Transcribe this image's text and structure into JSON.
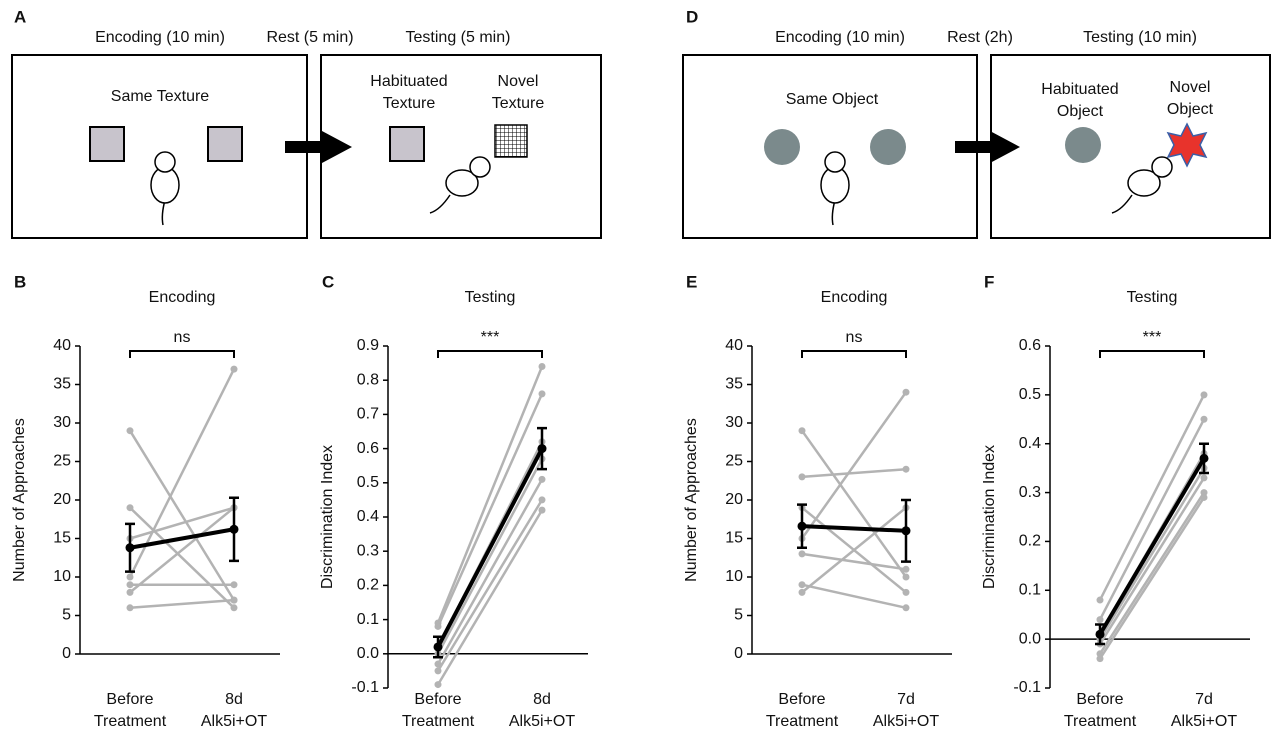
{
  "diagrams": [
    {
      "panel_label": "A",
      "phases": [
        "Encoding (10 min)",
        "Rest (5 min)",
        "Testing (5 min)"
      ],
      "encoding_label": "Same Texture",
      "habituated": [
        "Habituated",
        "Texture"
      ],
      "novel": [
        "Novel",
        "Texture"
      ]
    },
    {
      "panel_label": "D",
      "phases": [
        "Encoding (10 min)",
        "Rest (2h)",
        "Testing (10 min)"
      ],
      "encoding_label": "Same Object",
      "habituated": [
        "Habituated",
        "Object"
      ],
      "novel": [
        "Novel",
        "Object"
      ]
    }
  ],
  "chart_data": [
    {
      "type": "line",
      "panel_label": "B",
      "title": "Encoding",
      "ylabel": "Number of Approaches",
      "categories": [
        [
          "Before",
          "Treatment"
        ],
        [
          "8d",
          "Alk5i+OT"
        ]
      ],
      "ylim": [
        0,
        40
      ],
      "yticks": [
        0,
        5,
        10,
        15,
        20,
        25,
        30,
        35,
        40
      ],
      "annotation": "ns",
      "series": [
        {
          "color": "#b3b3b3",
          "values": [
            29,
            7
          ]
        },
        {
          "color": "#b3b3b3",
          "values": [
            19,
            6
          ]
        },
        {
          "color": "#b3b3b3",
          "values": [
            15,
            19
          ]
        },
        {
          "color": "#b3b3b3",
          "values": [
            10,
            37
          ]
        },
        {
          "color": "#b3b3b3",
          "values": [
            9,
            9
          ]
        },
        {
          "color": "#b3b3b3",
          "values": [
            8,
            19
          ]
        },
        {
          "color": "#b3b3b3",
          "values": [
            6,
            7
          ]
        },
        {
          "color": "#000000",
          "values": [
            13.8,
            16.2
          ],
          "errors": [
            3.1,
            4.1
          ]
        }
      ]
    },
    {
      "type": "line",
      "panel_label": "C",
      "title": "Testing",
      "ylabel": "Discrimination Index",
      "categories": [
        [
          "Before",
          "Treatment"
        ],
        [
          "8d",
          "Alk5i+OT"
        ]
      ],
      "ylim": [
        -0.1,
        0.9
      ],
      "yticks": [
        -0.1,
        {
          "value": 0,
          "label": "0.0"
        },
        0.1,
        0.2,
        0.3,
        0.4,
        0.5,
        0.6,
        0.7,
        0.8,
        0.9
      ],
      "annotation": "***",
      "series": [
        {
          "color": "#b3b3b3",
          "values": [
            0.09,
            0.84
          ]
        },
        {
          "color": "#b3b3b3",
          "values": [
            0.08,
            0.76
          ]
        },
        {
          "color": "#b3b3b3",
          "values": [
            0.02,
            0.62
          ]
        },
        {
          "color": "#b3b3b3",
          "values": [
            0.0,
            0.57
          ]
        },
        {
          "color": "#b3b3b3",
          "values": [
            -0.03,
            0.51
          ]
        },
        {
          "color": "#b3b3b3",
          "values": [
            -0.05,
            0.45
          ]
        },
        {
          "color": "#b3b3b3",
          "values": [
            -0.09,
            0.42
          ]
        },
        {
          "color": "#000000",
          "values": [
            0.02,
            0.6
          ],
          "errors": [
            0.03,
            0.06
          ]
        }
      ]
    },
    {
      "type": "line",
      "panel_label": "E",
      "title": "Encoding",
      "ylabel": "Number of Approaches",
      "categories": [
        [
          "Before",
          "Treatment"
        ],
        [
          "7d",
          "Alk5i+OT"
        ]
      ],
      "ylim": [
        0,
        40
      ],
      "yticks": [
        0,
        5,
        10,
        15,
        20,
        25,
        30,
        35,
        40
      ],
      "annotation": "ns",
      "series": [
        {
          "color": "#b3b3b3",
          "values": [
            29,
            10
          ]
        },
        {
          "color": "#b3b3b3",
          "values": [
            23,
            24
          ]
        },
        {
          "color": "#b3b3b3",
          "values": [
            19,
            8
          ]
        },
        {
          "color": "#b3b3b3",
          "values": [
            15,
            34
          ]
        },
        {
          "color": "#b3b3b3",
          "values": [
            13,
            11
          ]
        },
        {
          "color": "#b3b3b3",
          "values": [
            9,
            6
          ]
        },
        {
          "color": "#b3b3b3",
          "values": [
            8,
            19
          ]
        },
        {
          "color": "#000000",
          "values": [
            16.6,
            16.0
          ],
          "errors": [
            2.8,
            4.0
          ]
        }
      ]
    },
    {
      "type": "line",
      "panel_label": "F",
      "title": "Testing",
      "ylabel": "Discrimination Index",
      "categories": [
        [
          "Before",
          "Treatment"
        ],
        [
          "7d",
          "Alk5i+OT"
        ]
      ],
      "ylim": [
        -0.1,
        0.6
      ],
      "yticks": [
        -0.1,
        {
          "value": 0,
          "label": "0.0"
        },
        0.1,
        0.2,
        0.3,
        0.4,
        0.5,
        0.6
      ],
      "annotation": "***",
      "series": [
        {
          "color": "#b3b3b3",
          "values": [
            0.08,
            0.5
          ]
        },
        {
          "color": "#b3b3b3",
          "values": [
            0.04,
            0.45
          ]
        },
        {
          "color": "#b3b3b3",
          "values": [
            0.01,
            0.38
          ]
        },
        {
          "color": "#b3b3b3",
          "values": [
            0.0,
            0.35
          ]
        },
        {
          "color": "#b3b3b3",
          "values": [
            -0.01,
            0.33
          ]
        },
        {
          "color": "#b3b3b3",
          "values": [
            -0.03,
            0.3
          ]
        },
        {
          "color": "#b3b3b3",
          "values": [
            -0.04,
            0.29
          ]
        },
        {
          "color": "#000000",
          "values": [
            0.01,
            0.37
          ],
          "errors": [
            0.02,
            0.03
          ]
        }
      ]
    }
  ]
}
